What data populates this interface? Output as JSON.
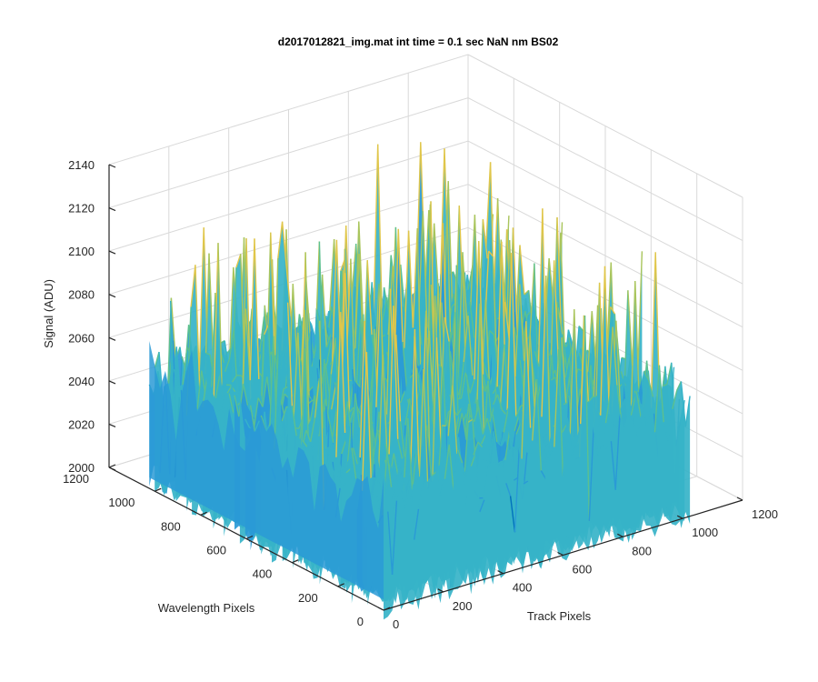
{
  "chart_data": {
    "type": "surface",
    "title": "d2017012821_img.mat int time = 0.1 sec  NaN nm BS02",
    "xlabel": "Track Pixels",
    "ylabel": "Wavelength Pixels",
    "zlabel": "Signal (ADU)",
    "xlim": [
      0,
      1200
    ],
    "ylim": [
      0,
      1200
    ],
    "zlim": [
      2000,
      2140
    ],
    "xticks": [
      "0",
      "200",
      "400",
      "600",
      "800",
      "1000",
      "1200"
    ],
    "yticks": [
      "0",
      "200",
      "400",
      "600",
      "800",
      "1000",
      "1200"
    ],
    "zticks": [
      "2000",
      "2020",
      "2040",
      "2060",
      "2080",
      "2100",
      "2120",
      "2140"
    ],
    "data_extent": {
      "x": [
        0,
        1024
      ],
      "y": [
        0,
        1024
      ]
    },
    "signal": {
      "mean": 2050,
      "typical_min": 2015,
      "typical_max": 2095,
      "peak_max": 2135,
      "trough_min": 1995
    },
    "grid": true,
    "colormap": [
      "#0072bd",
      "#2a9ad6",
      "#36b3c8",
      "#5cc08f",
      "#a9c55c",
      "#e0c64a"
    ]
  }
}
